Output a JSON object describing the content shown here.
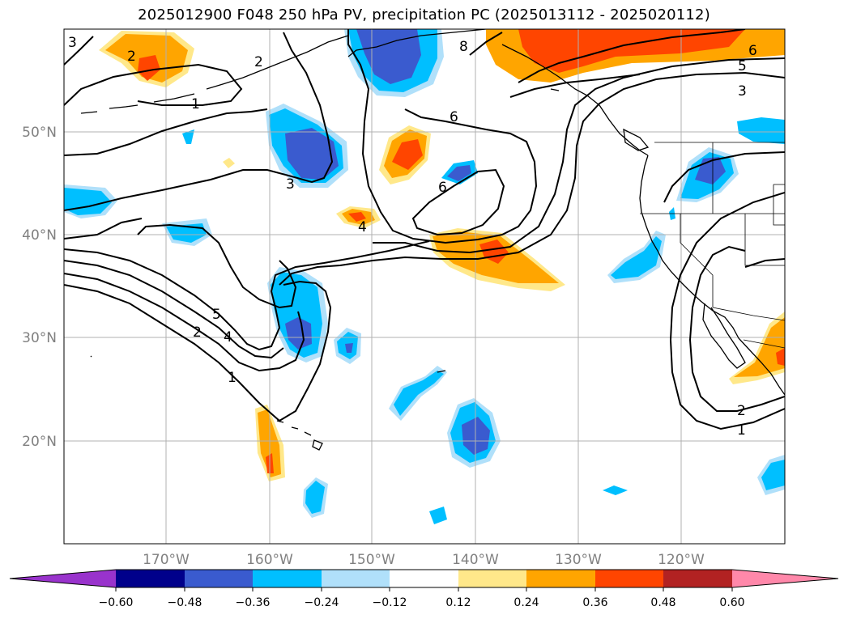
{
  "title": "2025012900 F048 250 hPa PV, precipitation PC (2025013112 - 2025020112)",
  "lat_ticks": [
    "50°N",
    "40°N",
    "30°N",
    "20°N"
  ],
  "lon_ticks": [
    "170°W",
    "160°W",
    "150°W",
    "140°W",
    "130°W",
    "120°W"
  ],
  "colorbar": {
    "labels": [
      "−0.60",
      "−0.48",
      "−0.36",
      "−0.24",
      "−0.12",
      "0.12",
      "0.24",
      "0.36",
      "0.48",
      "0.60"
    ],
    "colors": [
      "#9933cc",
      "#00008b",
      "#3a5bcf",
      "#00bfff",
      "#b0e0fa",
      "#ffffff",
      "#ffe88a",
      "#ffa500",
      "#ff4500",
      "#b22222",
      "#ff88aa"
    ]
  },
  "contour_labels": [
    "3",
    "2",
    "2",
    "1",
    "3",
    "8",
    "6",
    "6",
    "5",
    "3",
    "6",
    "4",
    "5",
    "4",
    "2",
    "1",
    "2",
    "1"
  ],
  "shading_colors": {
    "neg_light": "#b0e0fa",
    "neg_mid": "#00bfff",
    "neg_dark": "#3a5bcf",
    "pos_light": "#ffe88a",
    "pos_mid": "#ffa500",
    "pos_dark": "#ff4500"
  }
}
